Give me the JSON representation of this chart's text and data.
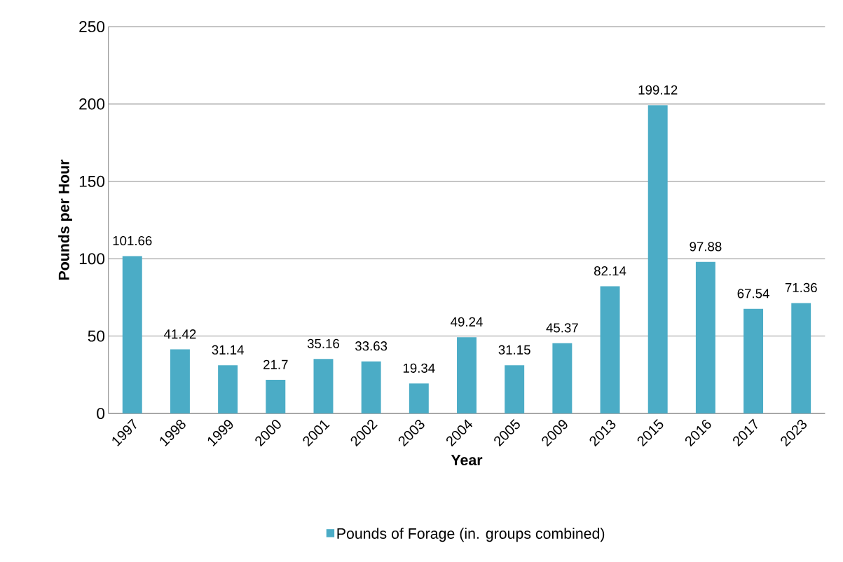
{
  "chart_data": {
    "type": "bar",
    "xlabel": "Year",
    "ylabel": "Pounds per Hour",
    "categories": [
      "1997",
      "1998",
      "1999",
      "2000",
      "2001",
      "2002",
      "2003",
      "2004",
      "2005",
      "2009",
      "2013",
      "2015",
      "2016",
      "2017",
      "2023"
    ],
    "series": [
      {
        "name": "Pounds of Forage (in. groups combined)",
        "color": "#4bacc6",
        "values": [
          101.66,
          41.42,
          31.14,
          21.7,
          35.16,
          33.63,
          19.34,
          49.24,
          31.15,
          45.37,
          82.14,
          199.12,
          97.88,
          67.54,
          71.36
        ]
      }
    ],
    "ylim": [
      0,
      250
    ],
    "yticks": [
      0,
      50,
      100,
      150,
      200,
      250
    ],
    "grid": "y",
    "legend": "bottom",
    "data_labels": true
  }
}
